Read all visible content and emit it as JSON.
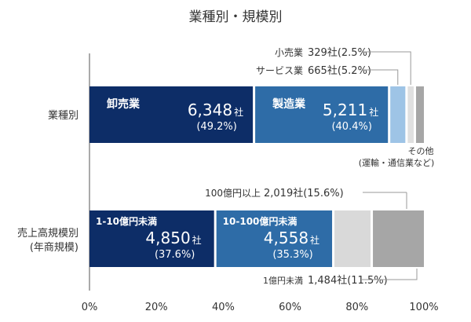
{
  "chart_data": {
    "type": "bar",
    "title": "業種別・規模別",
    "xlim": [
      0,
      100
    ],
    "x_ticks": [
      "0%",
      "20%",
      "40%",
      "60%",
      "80%",
      "100%"
    ],
    "grid": false,
    "rows": [
      {
        "label": "業種別",
        "segments": [
          {
            "name": "卸売業",
            "value": 49.2,
            "count": "6,348社",
            "pct": "(49.2%)",
            "color": "#0d2d67"
          },
          {
            "name": "製造業",
            "value": 40.4,
            "count": "5,211社",
            "pct": "(40.4%)",
            "color": "#2e6ca7"
          },
          {
            "name": "サービス業",
            "value": 5.2,
            "count": "665社(5.2%)",
            "color": "#9ec4e6"
          },
          {
            "name": "小売業",
            "value": 2.5,
            "count": "329社(2.5%)",
            "color": "#e0e0e0"
          },
          {
            "name": "その他",
            "sub": "(運輸・通信業など)",
            "value": 2.7,
            "color": "#a6a6a6"
          }
        ]
      },
      {
        "label": "売上高規模別",
        "sublabel": "(年商規模)",
        "segments": [
          {
            "name": "1-10億円未満",
            "value": 37.6,
            "count": "4,850社",
            "pct": "(37.6%)",
            "color": "#0d2d67"
          },
          {
            "name": "10-100億円未満",
            "value": 35.3,
            "count": "4,558社",
            "pct": "(35.3%)",
            "color": "#2e6ca7"
          },
          {
            "name": "1億円未満",
            "value": 11.5,
            "count": "1,484社(11.5%)",
            "color": "#d9d9d9"
          },
          {
            "name": "100億円以上",
            "value": 15.6,
            "count": "2,019社(15.6%)",
            "color": "#a6a6a6"
          }
        ]
      }
    ]
  }
}
